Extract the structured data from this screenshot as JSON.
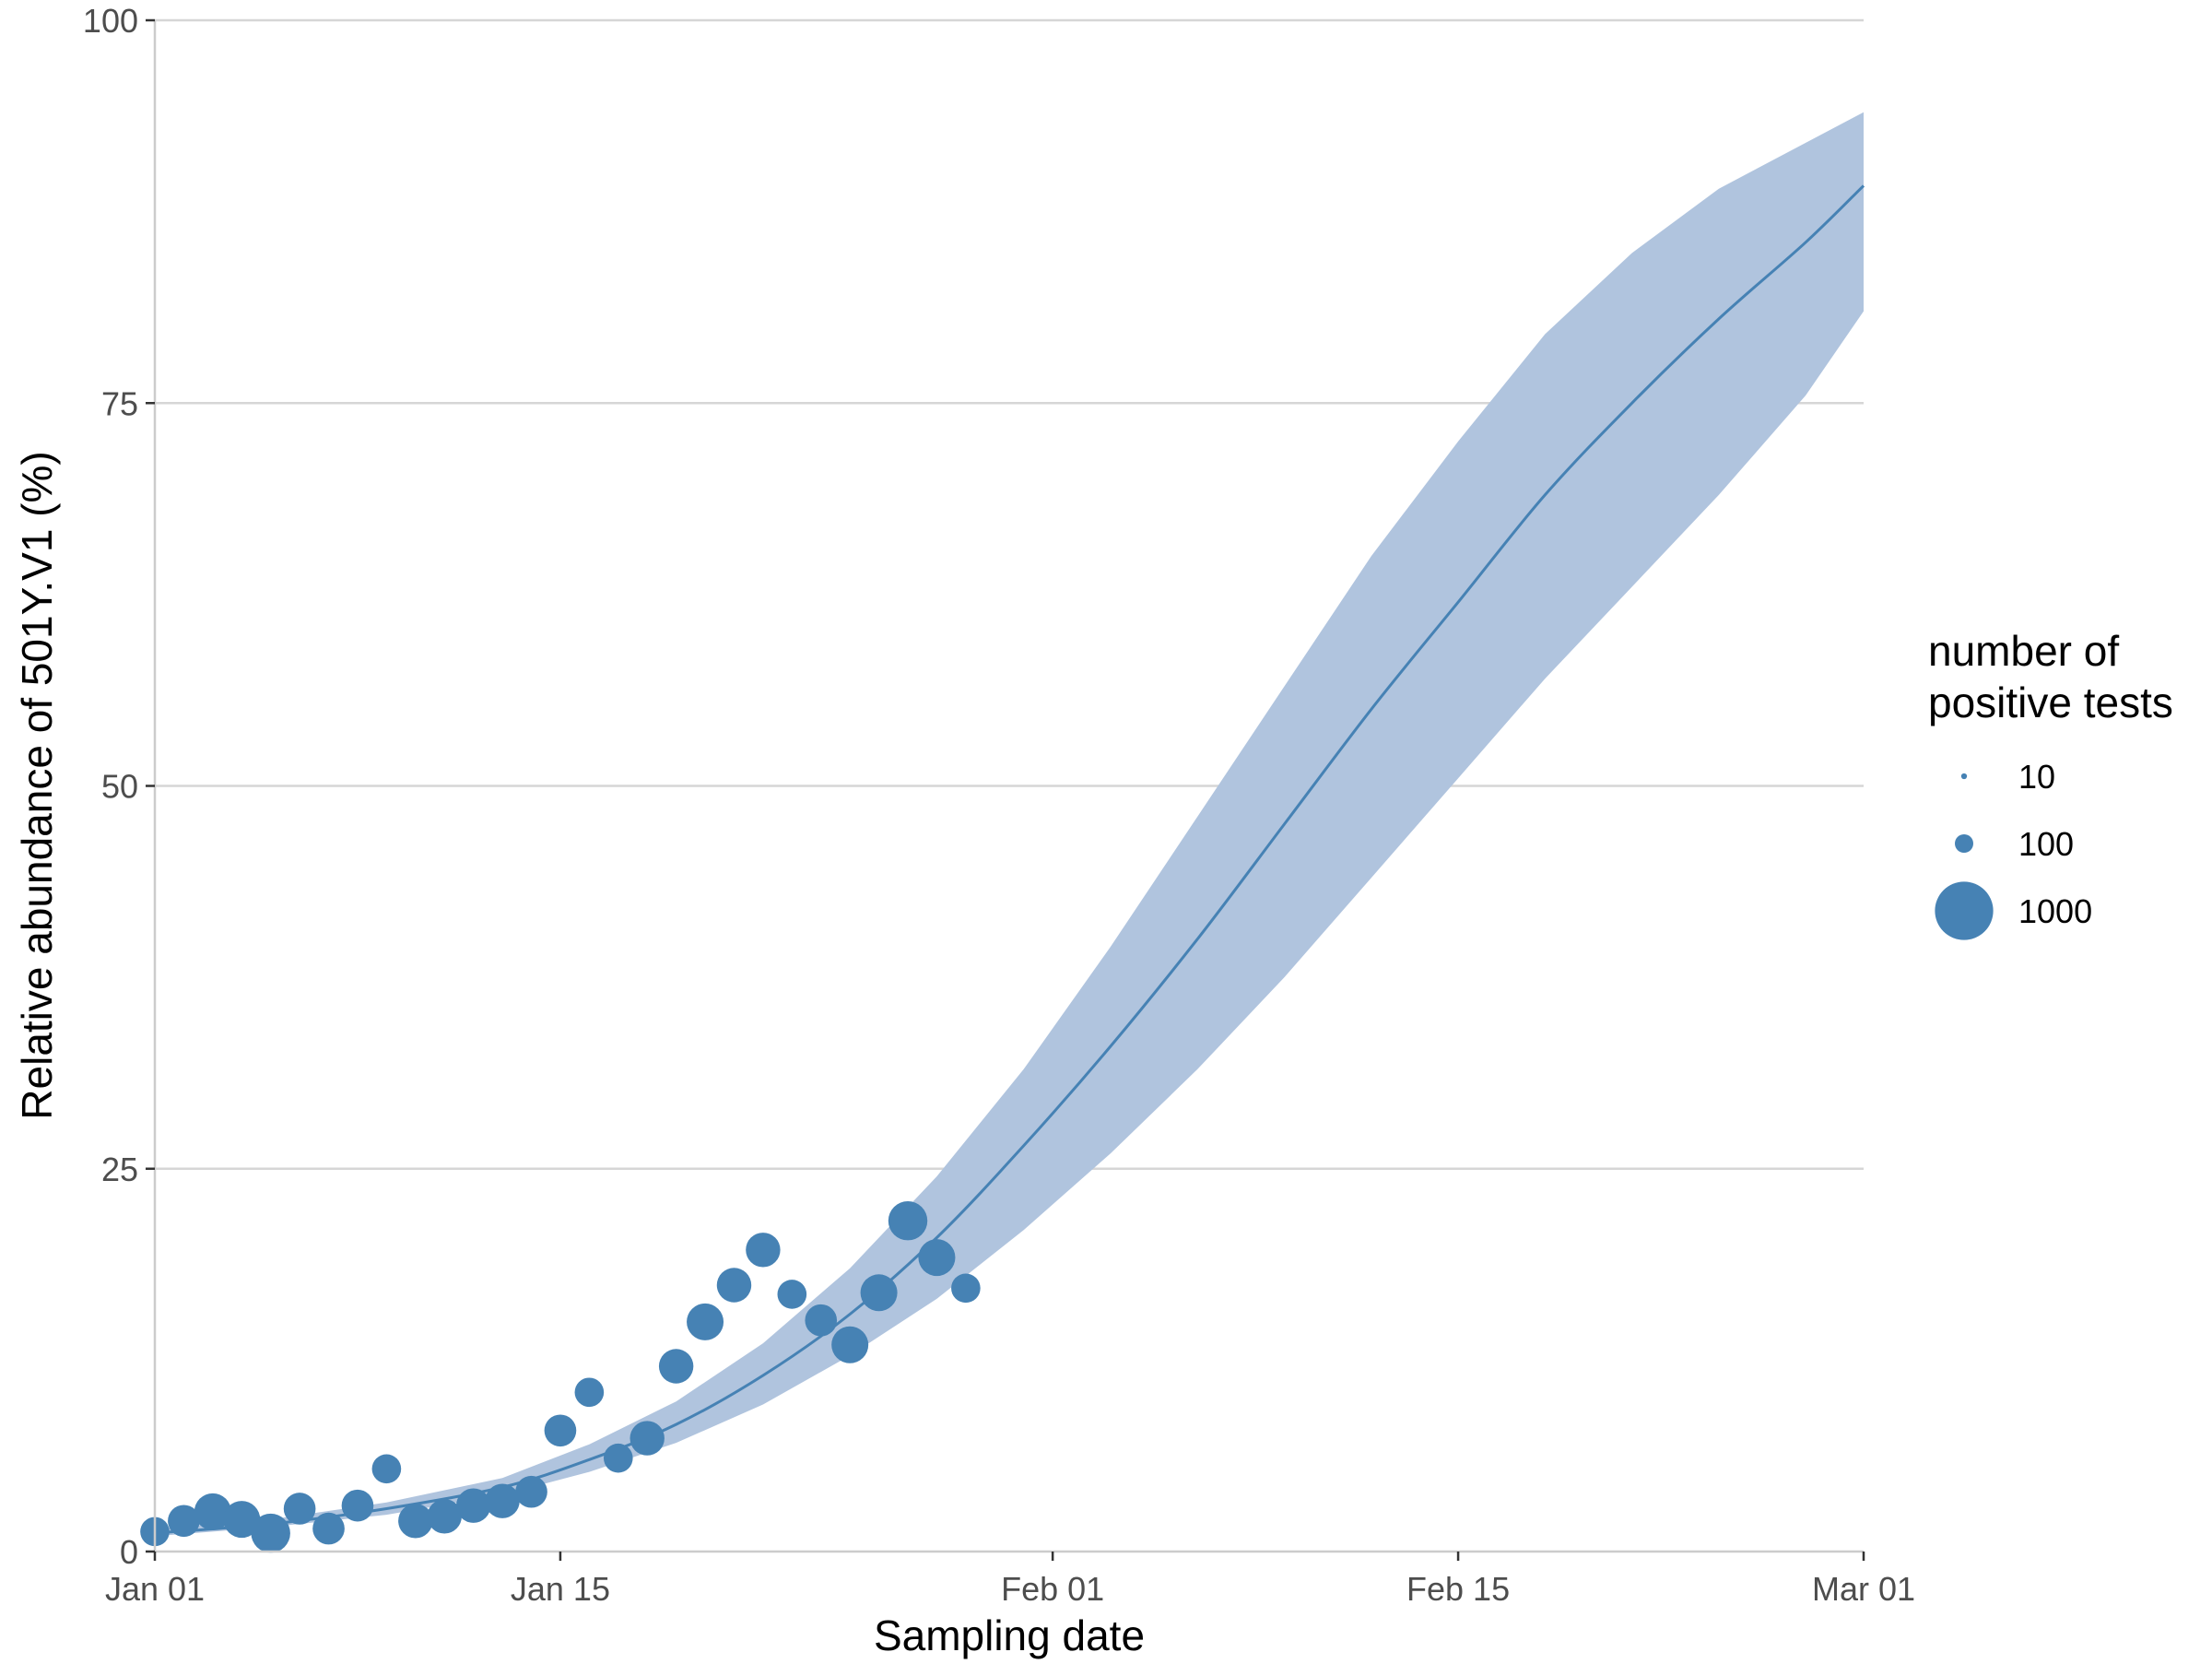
{
  "chart_data": {
    "type": "scatter",
    "title": "",
    "xlabel": "Sampling date",
    "ylabel": "Relative abundance of 501Y.V1 (%)",
    "xlim": [
      "2021-01-01",
      "2021-03-01"
    ],
    "ylim": [
      0,
      100
    ],
    "x_ticks": [
      {
        "date": "2021-01-01",
        "label": "Jan 01"
      },
      {
        "date": "2021-01-15",
        "label": "Jan 15"
      },
      {
        "date": "2021-02-01",
        "label": "Feb 01"
      },
      {
        "date": "2021-02-15",
        "label": "Feb 15"
      },
      {
        "date": "2021-03-01",
        "label": "Mar 01"
      }
    ],
    "y_ticks": [
      {
        "value": 0,
        "label": "0"
      },
      {
        "value": 25,
        "label": "25"
      },
      {
        "value": 50,
        "label": "50"
      },
      {
        "value": 75,
        "label": "75"
      },
      {
        "value": 100,
        "label": "100"
      }
    ],
    "grid": "horizontal major lines",
    "color": "#4682b4",
    "band_color": "#b0c4de",
    "legend": {
      "title_lines": [
        "number of",
        "positive tests"
      ],
      "position": "right",
      "entries": [
        {
          "label": "10",
          "size_value": 10
        },
        {
          "label": "100",
          "size_value": 100
        },
        {
          "label": "1000",
          "size_value": 1000
        }
      ]
    },
    "points": [
      {
        "date": "2021-01-01",
        "y": 1.3,
        "n": 250
      },
      {
        "date": "2021-01-02",
        "y": 2.0,
        "n": 300
      },
      {
        "date": "2021-01-03",
        "y": 2.6,
        "n": 400
      },
      {
        "date": "2021-01-04",
        "y": 2.1,
        "n": 400
      },
      {
        "date": "2021-01-05",
        "y": 1.2,
        "n": 450
      },
      {
        "date": "2021-01-06",
        "y": 2.8,
        "n": 300
      },
      {
        "date": "2021-01-07",
        "y": 1.5,
        "n": 300
      },
      {
        "date": "2021-01-08",
        "y": 3.0,
        "n": 300
      },
      {
        "date": "2021-01-09",
        "y": 5.4,
        "n": 250
      },
      {
        "date": "2021-01-10",
        "y": 2.0,
        "n": 350
      },
      {
        "date": "2021-01-11",
        "y": 2.3,
        "n": 350
      },
      {
        "date": "2021-01-12",
        "y": 3.0,
        "n": 350
      },
      {
        "date": "2021-01-13",
        "y": 3.3,
        "n": 350
      },
      {
        "date": "2021-01-14",
        "y": 3.9,
        "n": 300
      },
      {
        "date": "2021-01-15",
        "y": 7.9,
        "n": 300
      },
      {
        "date": "2021-01-16",
        "y": 10.4,
        "n": 250
      },
      {
        "date": "2021-01-17",
        "y": 6.1,
        "n": 250
      },
      {
        "date": "2021-01-18",
        "y": 7.4,
        "n": 350
      },
      {
        "date": "2021-01-19",
        "y": 12.1,
        "n": 350
      },
      {
        "date": "2021-01-20",
        "y": 15.0,
        "n": 400
      },
      {
        "date": "2021-01-21",
        "y": 17.4,
        "n": 350
      },
      {
        "date": "2021-01-22",
        "y": 19.7,
        "n": 350
      },
      {
        "date": "2021-01-23",
        "y": 16.8,
        "n": 250
      },
      {
        "date": "2021-01-24",
        "y": 15.1,
        "n": 300
      },
      {
        "date": "2021-01-25",
        "y": 13.5,
        "n": 400
      },
      {
        "date": "2021-01-26",
        "y": 16.9,
        "n": 400
      },
      {
        "date": "2021-01-27",
        "y": 21.6,
        "n": 450
      },
      {
        "date": "2021-01-28",
        "y": 19.2,
        "n": 400
      },
      {
        "date": "2021-01-29",
        "y": 17.2,
        "n": 250
      }
    ],
    "fit": {
      "x": [
        "2021-01-01",
        "2021-01-05",
        "2021-01-09",
        "2021-01-13",
        "2021-01-16",
        "2021-01-19",
        "2021-01-22",
        "2021-01-25",
        "2021-01-28",
        "2021-01-31",
        "2021-02-03",
        "2021-02-06",
        "2021-02-09",
        "2021-02-12",
        "2021-02-15",
        "2021-02-18",
        "2021-02-21",
        "2021-02-24",
        "2021-02-27",
        "2021-03-01"
      ],
      "y": [
        1.2,
        1.8,
        2.8,
        4.2,
        6.0,
        8.3,
        11.5,
        15.5,
        20.5,
        26.5,
        33.0,
        40.0,
        47.5,
        55.0,
        62.0,
        69.0,
        75.0,
        80.5,
        85.5,
        89.2
      ],
      "lower": [
        1.0,
        1.6,
        2.4,
        3.7,
        5.2,
        7.1,
        9.6,
        12.8,
        16.5,
        21.0,
        26.0,
        31.5,
        37.5,
        44.0,
        50.5,
        57.0,
        63.0,
        69.0,
        75.5,
        81.0
      ],
      "upper": [
        1.5,
        2.1,
        3.2,
        4.8,
        7.0,
        9.8,
        13.6,
        18.5,
        24.5,
        31.5,
        39.5,
        48.0,
        56.5,
        65.0,
        72.5,
        79.5,
        84.8,
        89.0,
        92.0,
        94.0
      ]
    }
  }
}
